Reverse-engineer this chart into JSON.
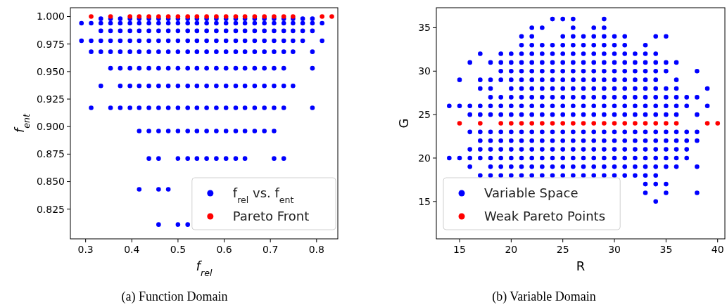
{
  "chart_data": [
    {
      "type": "scatter",
      "title": "(a) Function Domain",
      "xlabel": "f$_{rel}$",
      "ylabel": "f$_{ent}$",
      "xlim": [
        0.267,
        0.846
      ],
      "ylim": [
        0.798,
        1.008
      ],
      "xticks": [
        0.3,
        0.4,
        0.5,
        0.6,
        0.7,
        0.8
      ],
      "yticks": [
        0.825,
        {
          "value": 0.85,
          "label": "0.850"
        },
        0.875,
        {
          "value": 0.9,
          "label": "0.900"
        },
        0.925,
        {
          "value": 0.95,
          "label": "0.950"
        },
        0.975,
        {
          "value": 1,
          "label": "1.000"
        }
      ],
      "legend": "bottom right",
      "marker": "circle",
      "grid": false,
      "series": [
        {
          "name": "f$_{rel}$ vs. f$_{ent}$",
          "color": "#0000ff",
          "x": [
            0.333,
            0.354,
            0.375,
            0.396,
            0.416,
            0.437,
            0.458,
            0.479,
            0.5,
            0.521,
            0.541,
            0.562,
            0.583,
            0.604,
            0.625,
            0.645,
            0.666,
            0.687,
            0.708,
            0.729,
            0.749,
            0.77,
            0.791,
            0.291,
            0.312,
            0.333,
            0.354,
            0.375,
            0.396,
            0.416,
            0.437,
            0.458,
            0.479,
            0.5,
            0.521,
            0.541,
            0.562,
            0.583,
            0.604,
            0.625,
            0.645,
            0.666,
            0.687,
            0.708,
            0.729,
            0.749,
            0.77,
            0.791,
            0.812,
            0.333,
            0.354,
            0.375,
            0.396,
            0.416,
            0.437,
            0.458,
            0.479,
            0.5,
            0.521,
            0.541,
            0.562,
            0.583,
            0.604,
            0.625,
            0.645,
            0.666,
            0.687,
            0.708,
            0.729,
            0.749,
            0.77,
            0.791,
            0.291,
            0.312,
            0.333,
            0.354,
            0.375,
            0.396,
            0.416,
            0.437,
            0.458,
            0.479,
            0.5,
            0.521,
            0.541,
            0.562,
            0.583,
            0.604,
            0.625,
            0.645,
            0.666,
            0.687,
            0.708,
            0.729,
            0.749,
            0.77,
            0.812,
            0.312,
            0.333,
            0.354,
            0.375,
            0.396,
            0.416,
            0.437,
            0.458,
            0.479,
            0.5,
            0.521,
            0.541,
            0.562,
            0.583,
            0.604,
            0.625,
            0.645,
            0.666,
            0.687,
            0.708,
            0.729,
            0.749,
            0.791,
            0.354,
            0.375,
            0.396,
            0.416,
            0.437,
            0.458,
            0.479,
            0.5,
            0.521,
            0.541,
            0.562,
            0.583,
            0.604,
            0.625,
            0.645,
            0.666,
            0.687,
            0.708,
            0.729,
            0.791,
            0.333,
            0.375,
            0.396,
            0.416,
            0.437,
            0.458,
            0.479,
            0.5,
            0.521,
            0.541,
            0.562,
            0.583,
            0.604,
            0.625,
            0.645,
            0.666,
            0.687,
            0.708,
            0.729,
            0.749,
            0.312,
            0.354,
            0.375,
            0.396,
            0.416,
            0.437,
            0.458,
            0.479,
            0.5,
            0.521,
            0.541,
            0.562,
            0.583,
            0.604,
            0.625,
            0.645,
            0.666,
            0.687,
            0.708,
            0.729,
            0.791,
            0.416,
            0.437,
            0.458,
            0.479,
            0.5,
            0.521,
            0.541,
            0.562,
            0.583,
            0.604,
            0.625,
            0.645,
            0.666,
            0.687,
            0.708,
            0.437,
            0.458,
            0.5,
            0.521,
            0.541,
            0.562,
            0.583,
            0.604,
            0.625,
            0.645,
            0.708,
            0.729,
            0.416,
            0.458,
            0.479,
            0.458,
            0.5,
            0.521
          ],
          "values": [
            0.998,
            0.998,
            0.998,
            0.998,
            0.998,
            0.998,
            0.998,
            0.998,
            0.998,
            0.998,
            0.998,
            0.998,
            0.998,
            0.998,
            0.998,
            0.998,
            0.998,
            0.998,
            0.998,
            0.998,
            0.998,
            0.998,
            0.998,
            0.994,
            0.994,
            0.994,
            0.994,
            0.994,
            0.994,
            0.994,
            0.994,
            0.994,
            0.994,
            0.994,
            0.994,
            0.994,
            0.994,
            0.994,
            0.994,
            0.994,
            0.994,
            0.994,
            0.994,
            0.994,
            0.994,
            0.994,
            0.994,
            0.994,
            0.994,
            0.987,
            0.987,
            0.987,
            0.987,
            0.987,
            0.987,
            0.987,
            0.987,
            0.987,
            0.987,
            0.987,
            0.987,
            0.987,
            0.987,
            0.987,
            0.987,
            0.987,
            0.987,
            0.987,
            0.987,
            0.987,
            0.987,
            0.987,
            0.978,
            0.978,
            0.978,
            0.978,
            0.978,
            0.978,
            0.978,
            0.978,
            0.978,
            0.978,
            0.978,
            0.978,
            0.978,
            0.978,
            0.978,
            0.978,
            0.978,
            0.978,
            0.978,
            0.978,
            0.978,
            0.978,
            0.978,
            0.978,
            0.978,
            0.968,
            0.968,
            0.968,
            0.968,
            0.968,
            0.968,
            0.968,
            0.968,
            0.968,
            0.968,
            0.968,
            0.968,
            0.968,
            0.968,
            0.968,
            0.968,
            0.968,
            0.968,
            0.968,
            0.968,
            0.968,
            0.968,
            0.968,
            0.953,
            0.953,
            0.953,
            0.953,
            0.953,
            0.953,
            0.953,
            0.953,
            0.953,
            0.953,
            0.953,
            0.953,
            0.953,
            0.953,
            0.953,
            0.953,
            0.953,
            0.953,
            0.953,
            0.953,
            0.937,
            0.937,
            0.937,
            0.937,
            0.937,
            0.937,
            0.937,
            0.937,
            0.937,
            0.937,
            0.937,
            0.937,
            0.937,
            0.937,
            0.937,
            0.937,
            0.937,
            0.937,
            0.937,
            0.937,
            0.917,
            0.917,
            0.917,
            0.917,
            0.917,
            0.917,
            0.917,
            0.917,
            0.917,
            0.917,
            0.917,
            0.917,
            0.917,
            0.917,
            0.917,
            0.917,
            0.917,
            0.917,
            0.917,
            0.917,
            0.917,
            0.896,
            0.896,
            0.896,
            0.896,
            0.896,
            0.896,
            0.896,
            0.896,
            0.896,
            0.896,
            0.896,
            0.896,
            0.896,
            0.896,
            0.896,
            0.871,
            0.871,
            0.871,
            0.871,
            0.871,
            0.871,
            0.871,
            0.871,
            0.871,
            0.871,
            0.871,
            0.871,
            0.843,
            0.843,
            0.843,
            0.811,
            0.811,
            0.811
          ]
        },
        {
          "name": "Pareto Front",
          "color": "#ff0000",
          "x": [
            0.312,
            0.354,
            0.396,
            0.416,
            0.437,
            0.458,
            0.479,
            0.5,
            0.521,
            0.541,
            0.562,
            0.583,
            0.604,
            0.625,
            0.645,
            0.666,
            0.687,
            0.708,
            0.729,
            0.749,
            0.812,
            0.833
          ],
          "values": [
            1,
            1,
            1,
            1,
            1,
            1,
            1,
            1,
            1,
            1,
            1,
            1,
            1,
            1,
            1,
            1,
            1,
            1,
            1,
            1,
            1,
            1
          ]
        }
      ]
    },
    {
      "type": "scatter",
      "title": "(b) Variable Domain",
      "xlabel": "R",
      "ylabel": "G",
      "xlim": [
        12.75,
        40.7
      ],
      "ylim": [
        10.7,
        37.3
      ],
      "xticks": [
        15,
        20,
        25,
        30,
        35,
        40
      ],
      "yticks": [
        15,
        20,
        25,
        30,
        35
      ],
      "legend": "bottom left",
      "marker": "circle",
      "grid": false,
      "series": [
        {
          "name": "Variable Space",
          "color": "#0000ff",
          "x": [
            24,
            25,
            26,
            29,
            22,
            23,
            26,
            28,
            29,
            21,
            22,
            25,
            26,
            27,
            28,
            29,
            30,
            31,
            34,
            35,
            21,
            22,
            23,
            24,
            25,
            26,
            27,
            28,
            29,
            30,
            31,
            33,
            17,
            19,
            20,
            21,
            22,
            23,
            24,
            25,
            26,
            27,
            28,
            29,
            30,
            31,
            32,
            33,
            34,
            16,
            18,
            19,
            20,
            21,
            22,
            23,
            24,
            25,
            26,
            27,
            28,
            29,
            30,
            31,
            32,
            33,
            34,
            35,
            36,
            19,
            20,
            21,
            22,
            23,
            24,
            25,
            26,
            27,
            28,
            29,
            30,
            31,
            32,
            33,
            34,
            35,
            38,
            15,
            17,
            18,
            19,
            20,
            21,
            22,
            23,
            24,
            25,
            26,
            27,
            28,
            29,
            30,
            31,
            32,
            33,
            34,
            36,
            17,
            18,
            20,
            21,
            22,
            23,
            24,
            25,
            26,
            27,
            28,
            29,
            30,
            31,
            32,
            33,
            34,
            35,
            36,
            39,
            18,
            19,
            20,
            21,
            22,
            23,
            24,
            25,
            26,
            27,
            28,
            29,
            30,
            31,
            32,
            33,
            34,
            35,
            36,
            37,
            38,
            14,
            15,
            16,
            17,
            18,
            19,
            20,
            21,
            22,
            23,
            24,
            25,
            26,
            27,
            28,
            29,
            30,
            31,
            32,
            33,
            34,
            35,
            36,
            37,
            39,
            16,
            17,
            18,
            19,
            20,
            21,
            22,
            23,
            24,
            25,
            26,
            27,
            28,
            29,
            30,
            31,
            32,
            33,
            34,
            35,
            36,
            38,
            16,
            17,
            18,
            19,
            20,
            21,
            22,
            23,
            24,
            25,
            26,
            27,
            28,
            29,
            30,
            31,
            32,
            33,
            34,
            35,
            36,
            37,
            38,
            17,
            18,
            19,
            20,
            21,
            22,
            23,
            24,
            25,
            26,
            27,
            28,
            29,
            30,
            31,
            32,
            33,
            34,
            35,
            36,
            37,
            38,
            16,
            17,
            18,
            19,
            20,
            21,
            22,
            23,
            24,
            25,
            26,
            27,
            28,
            29,
            30,
            31,
            32,
            33,
            34,
            35,
            36,
            37,
            14,
            15,
            16,
            17,
            18,
            19,
            20,
            21,
            22,
            23,
            24,
            25,
            26,
            27,
            28,
            29,
            30,
            31,
            32,
            33,
            34,
            35,
            36,
            37,
            16,
            18,
            19,
            20,
            21,
            22,
            23,
            24,
            25,
            26,
            27,
            28,
            29,
            30,
            31,
            32,
            33,
            34,
            35,
            36,
            38,
            17,
            18,
            19,
            20,
            21,
            22,
            23,
            24,
            25,
            26,
            27,
            28,
            29,
            30,
            31,
            32,
            33,
            34,
            33,
            34,
            35,
            33,
            35,
            38,
            34
          ],
          "values": [
            36,
            36,
            36,
            36,
            35,
            35,
            35,
            35,
            35,
            34,
            34,
            34,
            34,
            34,
            34,
            34,
            34,
            34,
            34,
            34,
            33,
            33,
            33,
            33,
            33,
            33,
            33,
            33,
            33,
            33,
            33,
            33,
            32,
            32,
            32,
            32,
            32,
            32,
            32,
            32,
            32,
            32,
            32,
            32,
            32,
            32,
            32,
            32,
            32,
            31,
            31,
            31,
            31,
            31,
            31,
            31,
            31,
            31,
            31,
            31,
            31,
            31,
            31,
            31,
            31,
            31,
            31,
            31,
            31,
            30,
            30,
            30,
            30,
            30,
            30,
            30,
            30,
            30,
            30,
            30,
            30,
            30,
            30,
            30,
            30,
            30,
            30,
            29,
            29,
            29,
            29,
            29,
            29,
            29,
            29,
            29,
            29,
            29,
            29,
            29,
            29,
            29,
            29,
            29,
            29,
            29,
            29,
            28,
            28,
            28,
            28,
            28,
            28,
            28,
            28,
            28,
            28,
            28,
            28,
            28,
            28,
            28,
            28,
            28,
            28,
            28,
            28,
            27,
            27,
            27,
            27,
            27,
            27,
            27,
            27,
            27,
            27,
            27,
            27,
            27,
            27,
            27,
            27,
            27,
            27,
            27,
            27,
            27,
            26,
            26,
            26,
            26,
            26,
            26,
            26,
            26,
            26,
            26,
            26,
            26,
            26,
            26,
            26,
            26,
            26,
            26,
            26,
            26,
            26,
            26,
            26,
            26,
            26,
            25,
            25,
            25,
            25,
            25,
            25,
            25,
            25,
            25,
            25,
            25,
            25,
            25,
            25,
            25,
            25,
            25,
            25,
            25,
            25,
            25,
            25,
            23,
            23,
            23,
            23,
            23,
            23,
            23,
            23,
            23,
            23,
            23,
            23,
            23,
            23,
            23,
            23,
            23,
            23,
            23,
            23,
            23,
            23,
            23,
            22,
            22,
            22,
            22,
            22,
            22,
            22,
            22,
            22,
            22,
            22,
            22,
            22,
            22,
            22,
            22,
            22,
            22,
            22,
            22,
            22,
            22,
            21,
            21,
            21,
            21,
            21,
            21,
            21,
            21,
            21,
            21,
            21,
            21,
            21,
            21,
            21,
            21,
            21,
            21,
            21,
            21,
            21,
            21,
            20,
            20,
            20,
            20,
            20,
            20,
            20,
            20,
            20,
            20,
            20,
            20,
            20,
            20,
            20,
            20,
            20,
            20,
            20,
            20,
            20,
            20,
            20,
            20,
            19,
            19,
            19,
            19,
            19,
            19,
            19,
            19,
            19,
            19,
            19,
            19,
            19,
            19,
            19,
            19,
            19,
            19,
            19,
            19,
            19,
            18,
            18,
            18,
            18,
            18,
            18,
            18,
            18,
            18,
            18,
            18,
            18,
            18,
            18,
            18,
            18,
            18,
            18,
            17,
            17,
            17,
            16,
            16,
            16,
            15
          ]
        },
        {
          "name": "Weak Pareto Points",
          "color": "#ff0000",
          "x": [
            15,
            17,
            19,
            20,
            21,
            22,
            23,
            24,
            25,
            26,
            27,
            28,
            29,
            30,
            31,
            32,
            33,
            34,
            35,
            36,
            39,
            40
          ],
          "values": [
            24,
            24,
            24,
            24,
            24,
            24,
            24,
            24,
            24,
            24,
            24,
            24,
            24,
            24,
            24,
            24,
            24,
            24,
            24,
            24,
            24,
            24
          ]
        }
      ]
    }
  ]
}
